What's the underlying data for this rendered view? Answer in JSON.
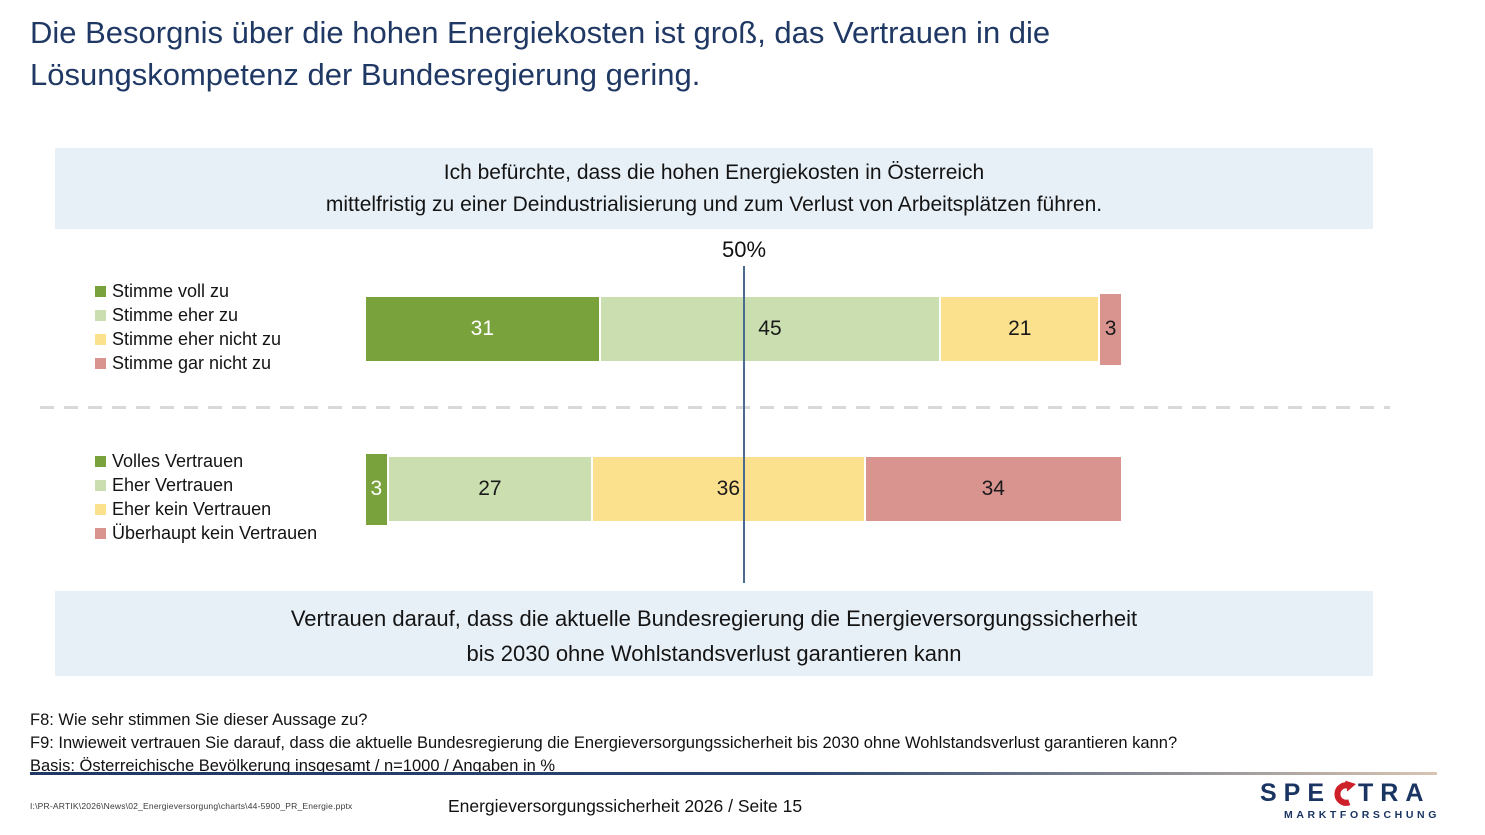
{
  "slide": {
    "title_lines": [
      "Die Besorgnis über die hohen Energiekosten ist groß, das Vertrauen in die",
      "Lösungskompetenz der Bundesregierung gering."
    ],
    "statement_top_lines": [
      "Ich befürchte, dass die hohen Energiekosten in Österreich",
      "mittelfristig zu einer Deindustrialisierung und zum Verlust von Arbeitsplätzen führen."
    ],
    "statement_bottom_lines": [
      "Vertrauen darauf, dass die aktuelle Bundesregierung die Energieversorgungssicherheit",
      "bis 2030 ohne Wohlstandsverlust garantieren kann"
    ]
  },
  "chart_data": {
    "type": "bar",
    "orientation": "horizontal-stacked",
    "unit": "percent",
    "axis_range": [
      0,
      100
    ],
    "reference_line": {
      "label": "50%",
      "value": 50
    },
    "legend_position": "left",
    "colors": [
      "#79A23D",
      "#CBDEAF",
      "#FBE08D",
      "#D99490"
    ],
    "charts": [
      {
        "statement": "Ich befürchte, dass die hohen Energiekosten in Österreich mittelfristig zu einer Deindustrialisierung und zum Verlust von Arbeitsplätzen führen.",
        "categories": [
          "Stimme voll zu",
          "Stimme eher zu",
          "Stimme eher nicht zu",
          "Stimme gar nicht zu"
        ],
        "values": [
          31,
          45,
          21,
          3
        ]
      },
      {
        "statement": "Vertrauen darauf, dass die aktuelle Bundesregierung die Energieversorgungssicherheit bis 2030 ohne Wohlstandsverlust garantieren kann",
        "categories": [
          "Volles Vertrauen",
          "Eher Vertrauen",
          "Eher kein Vertrauen",
          "Überhaupt kein Vertrauen"
        ],
        "values": [
          3,
          27,
          36,
          34
        ]
      }
    ]
  },
  "footnotes": [
    "F8: Wie sehr stimmen Sie dieser Aussage zu?",
    "F9: Inwieweit vertrauen Sie darauf, dass die aktuelle Bundesregierung die Energieversorgungssicherheit bis 2030 ohne Wohlstandsverlust garantieren kann?",
    "Basis: Österreichische Bevölkerung insgesamt / n=1000 / Angaben in %"
  ],
  "footer": {
    "file_path": "I:\\PR-ARTIK\\2026\\News\\02_Energieversorgung\\charts\\44-5900_PR_Energie.pptx",
    "center_text": "Energieversorgungssicherheit 2026  /  Seite 15",
    "logo": {
      "brand_pre": "SPE",
      "brand_post": "TRA",
      "subtitle": "MARKTFORSCHUNG",
      "navy": "#1B3563",
      "red": "#CE2029"
    }
  },
  "colors": {
    "title_navy": "#1F3864",
    "statement_box_blue": "#E8F0F7",
    "reference_line": "#4A6A8F",
    "dashed_divider": "#D9D9D9"
  }
}
